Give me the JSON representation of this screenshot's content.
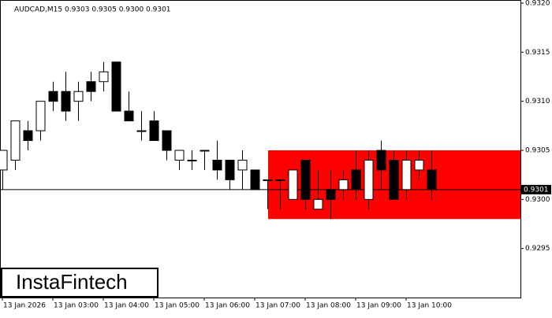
{
  "chart_data": {
    "type": "candlestick",
    "title": "AUDCAD,M15  0.9303 0.9305 0.9300 0.9301",
    "categories": [
      "13 Jan 2026",
      null,
      null,
      null,
      "13 Jan 03:00",
      null,
      null,
      null,
      "13 Jan 04:00",
      null,
      null,
      null,
      "13 Jan 05:00",
      null,
      null,
      null,
      "13 Jan 06:00",
      null,
      null,
      null,
      "13 Jan 07:00",
      null,
      null,
      null,
      "13 Jan 08:00",
      null,
      null,
      null,
      "13 Jan 09:00",
      null,
      null,
      null,
      "13 Jan 10:00",
      null,
      null
    ],
    "open": [
      0.9303,
      0.9304,
      0.9307,
      0.9307,
      0.9311,
      0.9311,
      0.931,
      0.9312,
      0.9312,
      0.9314,
      0.9309,
      0.9307,
      0.9308,
      0.9307,
      0.9304,
      0.9304,
      0.9305,
      0.9304,
      0.9304,
      0.9303,
      0.9303,
      0.9302,
      0.9302,
      0.93,
      0.9304,
      0.9299,
      0.9301,
      0.9301,
      0.9303,
      0.93,
      0.9305,
      0.9304,
      0.9301,
      0.9303,
      0.9303
    ],
    "high": [
      0.9305,
      0.9308,
      0.9308,
      0.931,
      0.9312,
      0.9313,
      0.9312,
      0.9313,
      0.9314,
      0.9314,
      0.9311,
      0.9309,
      0.9309,
      0.9307,
      0.9305,
      0.9305,
      0.9305,
      0.9306,
      0.9304,
      0.9305,
      0.9303,
      0.9302,
      0.9302,
      0.9303,
      0.9304,
      0.9303,
      0.9303,
      0.9303,
      0.9305,
      0.9305,
      0.9306,
      0.9305,
      0.9305,
      0.9305,
      0.9305
    ],
    "low": [
      0.9301,
      0.9303,
      0.9305,
      0.9306,
      0.9309,
      0.9308,
      0.9308,
      0.931,
      0.9311,
      0.9309,
      0.9308,
      0.9306,
      0.9306,
      0.9304,
      0.9303,
      0.9303,
      0.9303,
      0.9302,
      0.9301,
      0.9301,
      0.9301,
      0.9299,
      0.9299,
      0.93,
      0.9299,
      0.9299,
      0.9298,
      0.93,
      0.93,
      0.9299,
      0.9301,
      0.93,
      0.93,
      0.9302,
      0.93
    ],
    "close": [
      0.9305,
      0.9308,
      0.9306,
      0.931,
      0.931,
      0.9309,
      0.9311,
      0.9311,
      0.9313,
      0.9309,
      0.9308,
      0.9307,
      0.9306,
      0.9305,
      0.9305,
      0.9304,
      0.9305,
      0.9303,
      0.9302,
      0.9304,
      0.9301,
      0.9302,
      0.9302,
      0.9303,
      0.93,
      0.93,
      0.93,
      0.9302,
      0.9301,
      0.9304,
      0.9303,
      0.93,
      0.9304,
      0.9304,
      0.9301
    ],
    "ylim": [
      0.929,
      0.932
    ],
    "yticks": [
      {
        "value": 0.932,
        "label": "0.9320"
      },
      0.9315,
      {
        "value": 0.931,
        "label": "0.9310"
      },
      0.9305,
      {
        "value": 0.93,
        "label": "0.9300"
      },
      0.9295
    ],
    "last_price": 0.9301,
    "zone": {
      "start": 21,
      "high": 0.9305,
      "low": 0.9298,
      "color": "#ff0000"
    },
    "watermark": "InstaFintech"
  }
}
